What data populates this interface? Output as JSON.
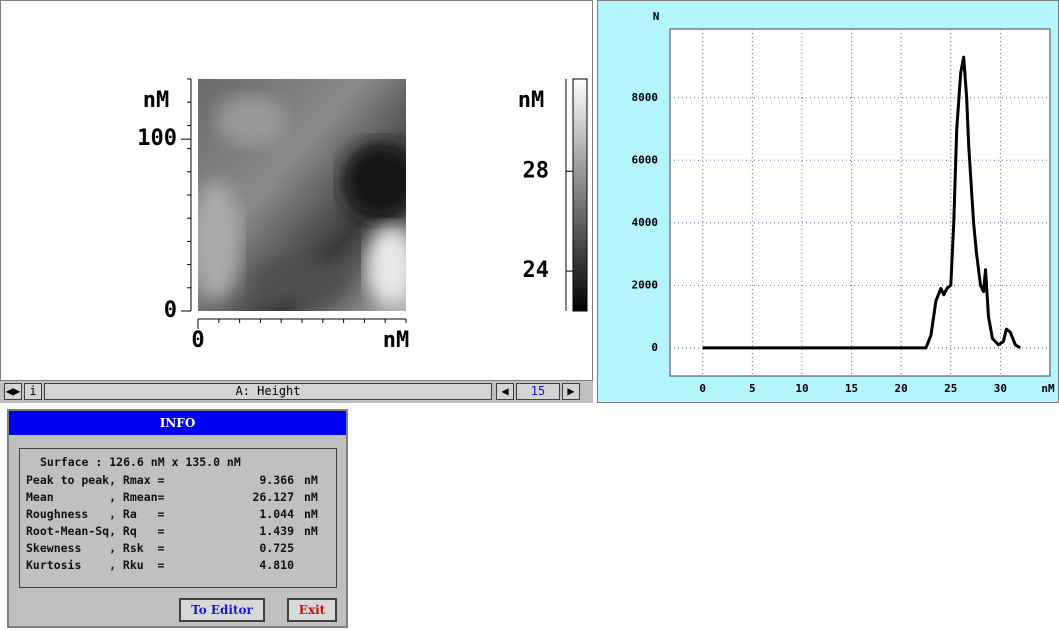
{
  "image_panel": {
    "y_unit": "nM",
    "ylim": [
      0,
      135
    ],
    "yticks": [
      0,
      100
    ],
    "x_unit": "nM",
    "xlim": [
      0,
      126.6
    ],
    "xticks": [
      0
    ],
    "colorbar_unit": "nM",
    "colorbar_lim": [
      22.4,
      31.7
    ],
    "colorbar_ticks": [
      24,
      28
    ],
    "toolbar": {
      "info_button": "i",
      "channel": "A: Height",
      "frame": "15"
    }
  },
  "chart_data": {
    "type": "line",
    "ylabel": "N",
    "xlabel": "nM",
    "color": "#000000",
    "grid": true,
    "xlim": [
      -3.3,
      35
    ],
    "ylim": [
      -900,
      10200
    ],
    "xticks": [
      0,
      5,
      10,
      15,
      20,
      25,
      30
    ],
    "yticks": [
      0,
      2000,
      4000,
      6000,
      8000
    ],
    "x": [
      0,
      5,
      10,
      15,
      20,
      22.5,
      23,
      23.5,
      24,
      24.3,
      24.6,
      25,
      25.3,
      25.6,
      26,
      26.3,
      26.6,
      26.8,
      27,
      27.3,
      27.6,
      28,
      28.3,
      28.5,
      28.8,
      29.2,
      29.8,
      30.3,
      30.6,
      31,
      31.5,
      32
    ],
    "values": [
      0,
      0,
      0,
      0,
      0,
      0,
      400,
      1500,
      1900,
      1700,
      1900,
      2000,
      4000,
      7000,
      8800,
      9300,
      8000,
      6500,
      5500,
      4000,
      3000,
      2000,
      1800,
      2500,
      1000,
      300,
      100,
      200,
      600,
      500,
      100,
      0
    ]
  },
  "info": {
    "title": "INFO",
    "surface": "Surface : 126.6 nM x 135.0 nM",
    "rows": [
      [
        "Peak to peak, Rmax =",
        "9.366",
        "nM"
      ],
      [
        "Mean        , Rmean=",
        "26.127",
        "nM"
      ],
      [
        "Roughness   , Ra   =",
        "1.044",
        "nM"
      ],
      [
        "Root-Mean-Sq, Rq   =",
        "1.439",
        "nM"
      ],
      [
        "Skewness    , Rsk  =",
        "0.725",
        ""
      ],
      [
        "Kurtosis    , Rku  =",
        "4.810",
        ""
      ]
    ],
    "buttons": [
      "To Editor",
      "Exit"
    ]
  }
}
